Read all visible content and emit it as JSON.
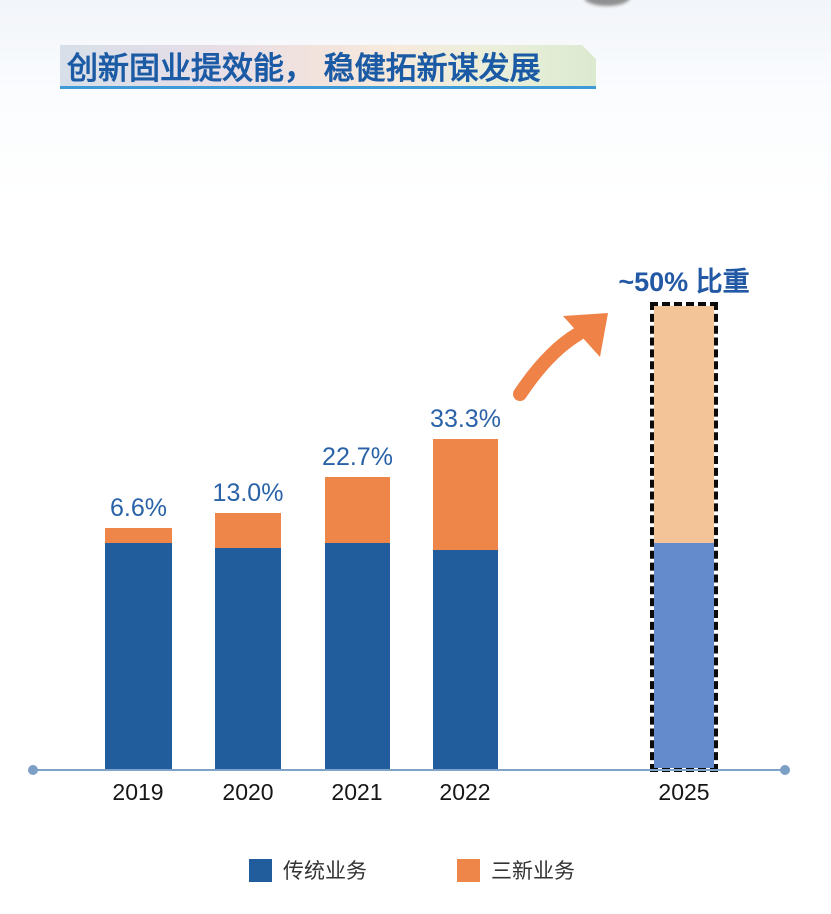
{
  "banner": {
    "title": "创新固业提效能， 稳健拓新谋发展"
  },
  "chart_data": {
    "type": "bar",
    "stacked": true,
    "categories": [
      "2019",
      "2020",
      "2021",
      "2022",
      "2025"
    ],
    "series": [
      {
        "name": "传统业务",
        "color": "#215C9C",
        "highlight_color": "#648CCC",
        "values": [
          227,
          222,
          227,
          220,
          233
        ]
      },
      {
        "name": "三新业务",
        "color": "#ED8648",
        "highlight_color": "#F2C498",
        "values": [
          15,
          35,
          66,
          111,
          237
        ]
      }
    ],
    "value_unit": "relative bar height (no y-axis shown)",
    "value_labels": [
      "6.6%",
      "13.0%",
      "22.7%",
      "33.3%",
      "~50% 比重"
    ],
    "new_business_share_pct": [
      6.6,
      13.0,
      22.7,
      33.3,
      50
    ],
    "highlight_index": 4,
    "highlight_style": "black dashed outline, faded fill colors",
    "legend_position": "bottom",
    "axes": {
      "y_axis": "hidden",
      "x_axis": "plain baseline with round dots at both ends"
    },
    "annotations": [
      {
        "name": "growth-arrow",
        "shape": "curved swoosh arrow pointing up-right at 2025 bar",
        "color": "#EE8247"
      }
    ]
  },
  "legend": {
    "items": [
      {
        "label": "传统业务",
        "color": "#215C9C"
      },
      {
        "label": "三新业务",
        "color": "#ED8648"
      }
    ]
  },
  "colors": {
    "bar_blue": "#215C9C",
    "bar_orange": "#ED8648",
    "highlight_blue": "#648CCC",
    "highlight_peach": "#F2C498",
    "value_label_blue": "#2A62A8",
    "axis_blue": "#7FA3C8",
    "banner_text_blue": "#1B5AA5",
    "banner_underline_blue": "#3F9BD8",
    "arrow_orange": "#EE8247"
  }
}
